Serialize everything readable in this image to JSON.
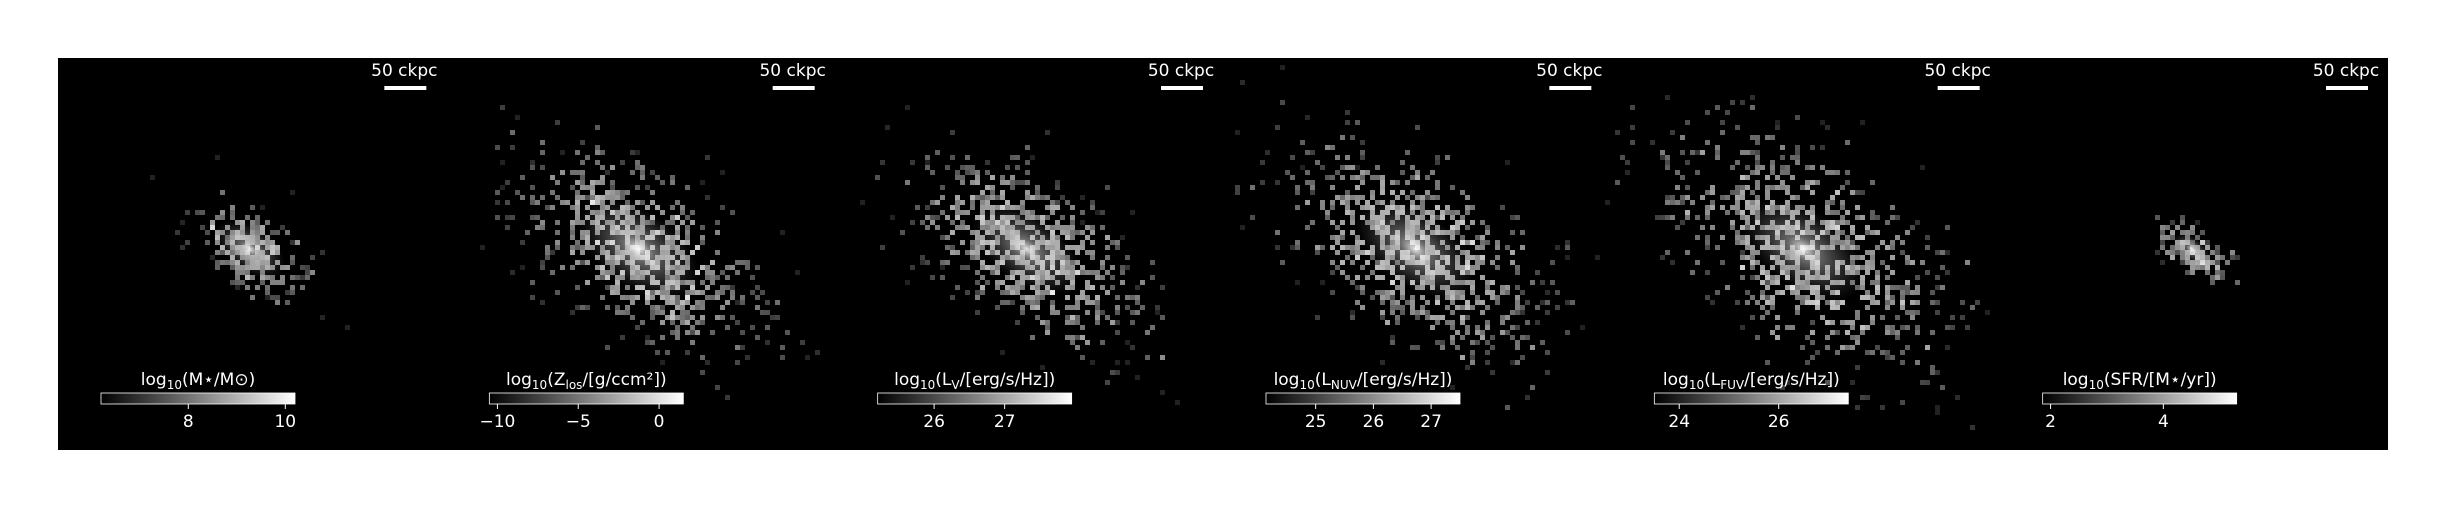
{
  "chart_data": [
    {
      "type": "image",
      "scale_bar": "50 ckpc",
      "colorbar": {
        "label": [
          "log",
          "10",
          "(M⋆/M⊙)"
        ],
        "xlim": [
          6.2,
          10.2
        ],
        "xticks": [
          8,
          10
        ]
      }
    },
    {
      "type": "image",
      "scale_bar": "50 ckpc",
      "colorbar": {
        "label": [
          "log",
          "10",
          "(Z",
          "los",
          "/[g/ccm²])"
        ],
        "xlim": [
          -10.5,
          1.5
        ],
        "xticks": [
          {
            "value": -10,
            "label": "−10"
          },
          {
            "value": -5,
            "label": "−5"
          },
          0
        ]
      }
    },
    {
      "type": "image",
      "scale_bar": "50 ckpc",
      "colorbar": {
        "label": [
          "log",
          "10",
          "(L",
          "V",
          "/[erg/s/Hz])"
        ],
        "xlim": [
          25.2,
          27.95
        ],
        "xticks": [
          26,
          27
        ]
      }
    },
    {
      "type": "image",
      "scale_bar": "50 ckpc",
      "colorbar": {
        "label": [
          "log",
          "10",
          "(L",
          "NUV",
          "/[erg/s/Hz])"
        ],
        "xlim": [
          24.14,
          27.5
        ],
        "xticks": [
          25,
          26,
          27
        ]
      }
    },
    {
      "type": "image",
      "scale_bar": "50 ckpc",
      "colorbar": {
        "label": [
          "log",
          "10",
          "(L",
          "FUV",
          "/[erg/s/Hz])"
        ],
        "xlim": [
          23.5,
          27.4
        ],
        "xticks": [
          24,
          26
        ]
      }
    },
    {
      "type": "image",
      "scale_bar": "50 ckpc",
      "colorbar": {
        "label": [
          "log",
          "10",
          "(SFR/[M⋆/yr])"
        ],
        "xlim": [
          1.86,
          5.3
        ],
        "xticks": [
          2,
          4
        ]
      }
    }
  ]
}
